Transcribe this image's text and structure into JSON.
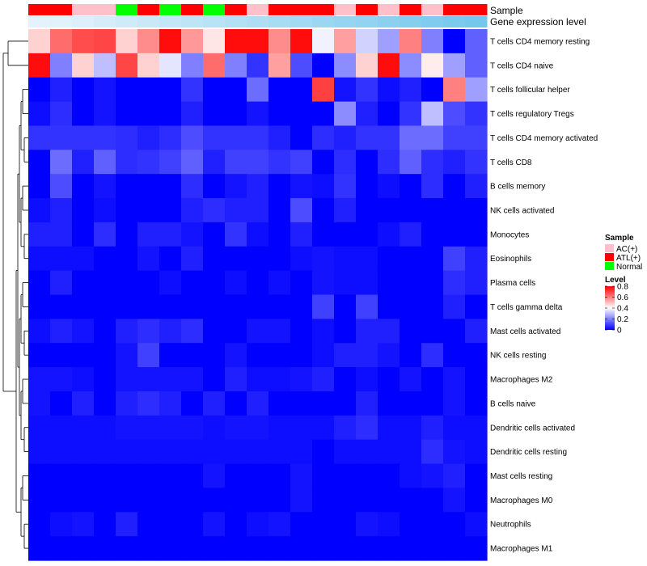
{
  "chart_data": {
    "type": "heatmap",
    "title": "",
    "annotation_rows": [
      {
        "name": "Sample",
        "label": "Sample"
      },
      {
        "name": "Gene expression level",
        "label": "Gene expression level"
      }
    ],
    "sample_groups": [
      "ATL(+)",
      "ATL(+)",
      "AC(+)",
      "AC(+)",
      "Normal",
      "ATL(+)",
      "Normal",
      "ATL(+)",
      "Normal",
      "ATL(+)",
      "AC(+)",
      "ATL(+)",
      "ATL(+)",
      "ATL(+)",
      "AC(+)",
      "ATL(+)",
      "AC(+)",
      "ATL(+)",
      "AC(+)",
      "ATL(+)",
      "ATL(+)"
    ],
    "expression_level": [
      0.02,
      0.05,
      0.1,
      0.15,
      0.2,
      0.25,
      0.3,
      0.35,
      0.4,
      0.45,
      0.5,
      0.55,
      0.6,
      0.65,
      0.7,
      0.75,
      0.8,
      0.85,
      0.9,
      0.95,
      1.0
    ],
    "rows": [
      "T cells CD4 memory resting",
      "T cells CD4 naive",
      "T cells follicular helper",
      "T cells regulatory  Tregs",
      "T cells CD4 memory activated",
      "T cells CD8",
      "B cells memory",
      "NK cells activated",
      "Monocytes",
      "Eosinophils",
      "Plasma cells",
      "T cells gamma delta",
      "Mast cells activated",
      "NK cells resting",
      "Macrophages M2",
      "B cells naive",
      "Dendritic cells activated",
      "Dendritic cells resting",
      "Mast cells resting",
      "Macrophages M0",
      "Neutrophils",
      "Macrophages M1"
    ],
    "values": [
      [
        0.47,
        0.63,
        0.68,
        0.69,
        0.47,
        0.58,
        0.78,
        0.56,
        0.44,
        0.78,
        0.78,
        0.58,
        0.78,
        0.38,
        0.55,
        0.33,
        0.25,
        0.6,
        0.2,
        0.0,
        0.15
      ],
      [
        0.78,
        0.2,
        0.47,
        0.3,
        0.69,
        0.47,
        0.36,
        0.2,
        0.63,
        0.2,
        0.08,
        0.55,
        0.12,
        0.0,
        0.22,
        0.47,
        0.78,
        0.22,
        0.43,
        0.25,
        0.15
      ],
      [
        0.0,
        0.05,
        0.0,
        0.03,
        0.0,
        0.0,
        0.0,
        0.08,
        0.0,
        0.0,
        0.17,
        0.0,
        0.0,
        0.7,
        0.03,
        0.08,
        0.02,
        0.05,
        0.0,
        0.6,
        0.25
      ],
      [
        0.02,
        0.07,
        0.0,
        0.03,
        0.0,
        0.0,
        0.0,
        0.05,
        0.0,
        0.0,
        0.03,
        0.0,
        0.0,
        0.0,
        0.22,
        0.05,
        0.0,
        0.08,
        0.3,
        0.12,
        0.08
      ],
      [
        0.08,
        0.08,
        0.08,
        0.08,
        0.07,
        0.05,
        0.07,
        0.12,
        0.08,
        0.08,
        0.08,
        0.05,
        0.0,
        0.07,
        0.05,
        0.08,
        0.08,
        0.17,
        0.17,
        0.1,
        0.1
      ],
      [
        0.0,
        0.17,
        0.05,
        0.15,
        0.07,
        0.08,
        0.1,
        0.15,
        0.05,
        0.1,
        0.1,
        0.08,
        0.1,
        0.0,
        0.07,
        0.0,
        0.07,
        0.15,
        0.07,
        0.05,
        0.08
      ],
      [
        0.0,
        0.12,
        0.0,
        0.03,
        0.0,
        0.0,
        0.0,
        0.07,
        0.0,
        0.03,
        0.05,
        0.0,
        0.03,
        0.02,
        0.08,
        0.0,
        0.02,
        0.0,
        0.07,
        0.0,
        0.05
      ],
      [
        0.02,
        0.05,
        0.0,
        0.02,
        0.0,
        0.0,
        0.0,
        0.05,
        0.07,
        0.05,
        0.05,
        0.0,
        0.12,
        0.0,
        0.05,
        0.0,
        0.0,
        0.0,
        0.0,
        0.0,
        0.0
      ],
      [
        0.05,
        0.05,
        0.0,
        0.07,
        0.0,
        0.05,
        0.05,
        0.03,
        0.0,
        0.08,
        0.02,
        0.0,
        0.05,
        0.0,
        0.0,
        0.0,
        0.02,
        0.05,
        0.0,
        0.0,
        0.0
      ],
      [
        0.02,
        0.02,
        0.02,
        0.0,
        0.0,
        0.03,
        0.0,
        0.05,
        0.0,
        0.0,
        0.0,
        0.0,
        0.02,
        0.03,
        0.02,
        0.02,
        0.0,
        0.0,
        0.0,
        0.1,
        0.05
      ],
      [
        0.0,
        0.05,
        0.0,
        0.0,
        0.0,
        0.0,
        0.02,
        0.0,
        0.0,
        0.02,
        0.0,
        0.02,
        0.0,
        0.03,
        0.02,
        0.02,
        0.0,
        0.0,
        0.0,
        0.07,
        0.05
      ],
      [
        0.0,
        0.0,
        0.0,
        0.0,
        0.0,
        0.0,
        0.0,
        0.0,
        0.0,
        0.0,
        0.0,
        0.0,
        0.0,
        0.1,
        0.0,
        0.1,
        0.0,
        0.0,
        0.0,
        0.05,
        0.0
      ],
      [
        0.02,
        0.05,
        0.03,
        0.0,
        0.05,
        0.07,
        0.05,
        0.07,
        0.0,
        0.0,
        0.03,
        0.03,
        0.0,
        0.02,
        0.0,
        0.05,
        0.05,
        0.0,
        0.0,
        0.0,
        0.05
      ],
      [
        0.0,
        0.0,
        0.0,
        0.0,
        0.03,
        0.1,
        0.0,
        0.0,
        0.0,
        0.03,
        0.0,
        0.0,
        0.0,
        0.02,
        0.05,
        0.05,
        0.03,
        0.0,
        0.07,
        0.0,
        0.0
      ],
      [
        0.03,
        0.03,
        0.02,
        0.0,
        0.03,
        0.03,
        0.03,
        0.03,
        0.0,
        0.05,
        0.02,
        0.02,
        0.03,
        0.05,
        0.0,
        0.02,
        0.0,
        0.03,
        0.0,
        0.03,
        0.0
      ],
      [
        0.03,
        0.0,
        0.05,
        0.0,
        0.05,
        0.07,
        0.05,
        0.0,
        0.05,
        0.0,
        0.05,
        0.0,
        0.0,
        0.0,
        0.0,
        0.05,
        0.0,
        0.0,
        0.0,
        0.03,
        0.0
      ],
      [
        0.02,
        0.02,
        0.02,
        0.02,
        0.03,
        0.03,
        0.03,
        0.03,
        0.02,
        0.03,
        0.03,
        0.02,
        0.02,
        0.02,
        0.05,
        0.07,
        0.02,
        0.02,
        0.05,
        0.02,
        0.02
      ],
      [
        0.02,
        0.02,
        0.02,
        0.02,
        0.02,
        0.02,
        0.02,
        0.02,
        0.02,
        0.02,
        0.02,
        0.02,
        0.02,
        0.0,
        0.02,
        0.02,
        0.02,
        0.02,
        0.07,
        0.03,
        0.02
      ],
      [
        0.0,
        0.0,
        0.0,
        0.0,
        0.0,
        0.0,
        0.0,
        0.0,
        0.03,
        0.0,
        0.0,
        0.0,
        0.03,
        0.0,
        0.0,
        0.0,
        0.0,
        0.02,
        0.03,
        0.05,
        0.0
      ],
      [
        0.0,
        0.0,
        0.0,
        0.0,
        0.0,
        0.0,
        0.0,
        0.0,
        0.0,
        0.0,
        0.0,
        0.0,
        0.03,
        0.0,
        0.0,
        0.0,
        0.0,
        0.0,
        0.0,
        0.03,
        0.0
      ],
      [
        0.0,
        0.02,
        0.03,
        0.0,
        0.05,
        0.0,
        0.0,
        0.0,
        0.03,
        0.0,
        0.02,
        0.03,
        0.0,
        0.0,
        0.0,
        0.03,
        0.02,
        0.0,
        0.0,
        0.0,
        0.02
      ],
      [
        0.0,
        0.0,
        0.0,
        0.0,
        0.0,
        0.0,
        0.0,
        0.0,
        0.0,
        0.0,
        0.0,
        0.0,
        0.0,
        0.0,
        0.0,
        0.0,
        0.0,
        0.0,
        0.0,
        0.0,
        0.0
      ]
    ],
    "color_scale": {
      "min": 0,
      "max": 0.8,
      "low": "#0000ff",
      "mid": "#ffffff",
      "high": "#ff0000",
      "midpoint": 0.4
    },
    "legend": {
      "sample_title": "Sample",
      "sample_entries": [
        {
          "label": "AC(+)",
          "color": "#ffc0cb"
        },
        {
          "label": "ATL(+)",
          "color": "#ff0000"
        },
        {
          "label": "Normal",
          "color": "#00ff00"
        }
      ],
      "level_title": "Level",
      "level_ticks": [
        0.8,
        0.6,
        0.4,
        0.2,
        0
      ],
      "level_tick_labels": [
        "0.8",
        "0.6",
        "0.4",
        "0.2",
        "0"
      ]
    },
    "expression_color_low": "#e6f4fb",
    "expression_color_high": "#74c8ec",
    "dendrogram": "row clustering (left)"
  }
}
